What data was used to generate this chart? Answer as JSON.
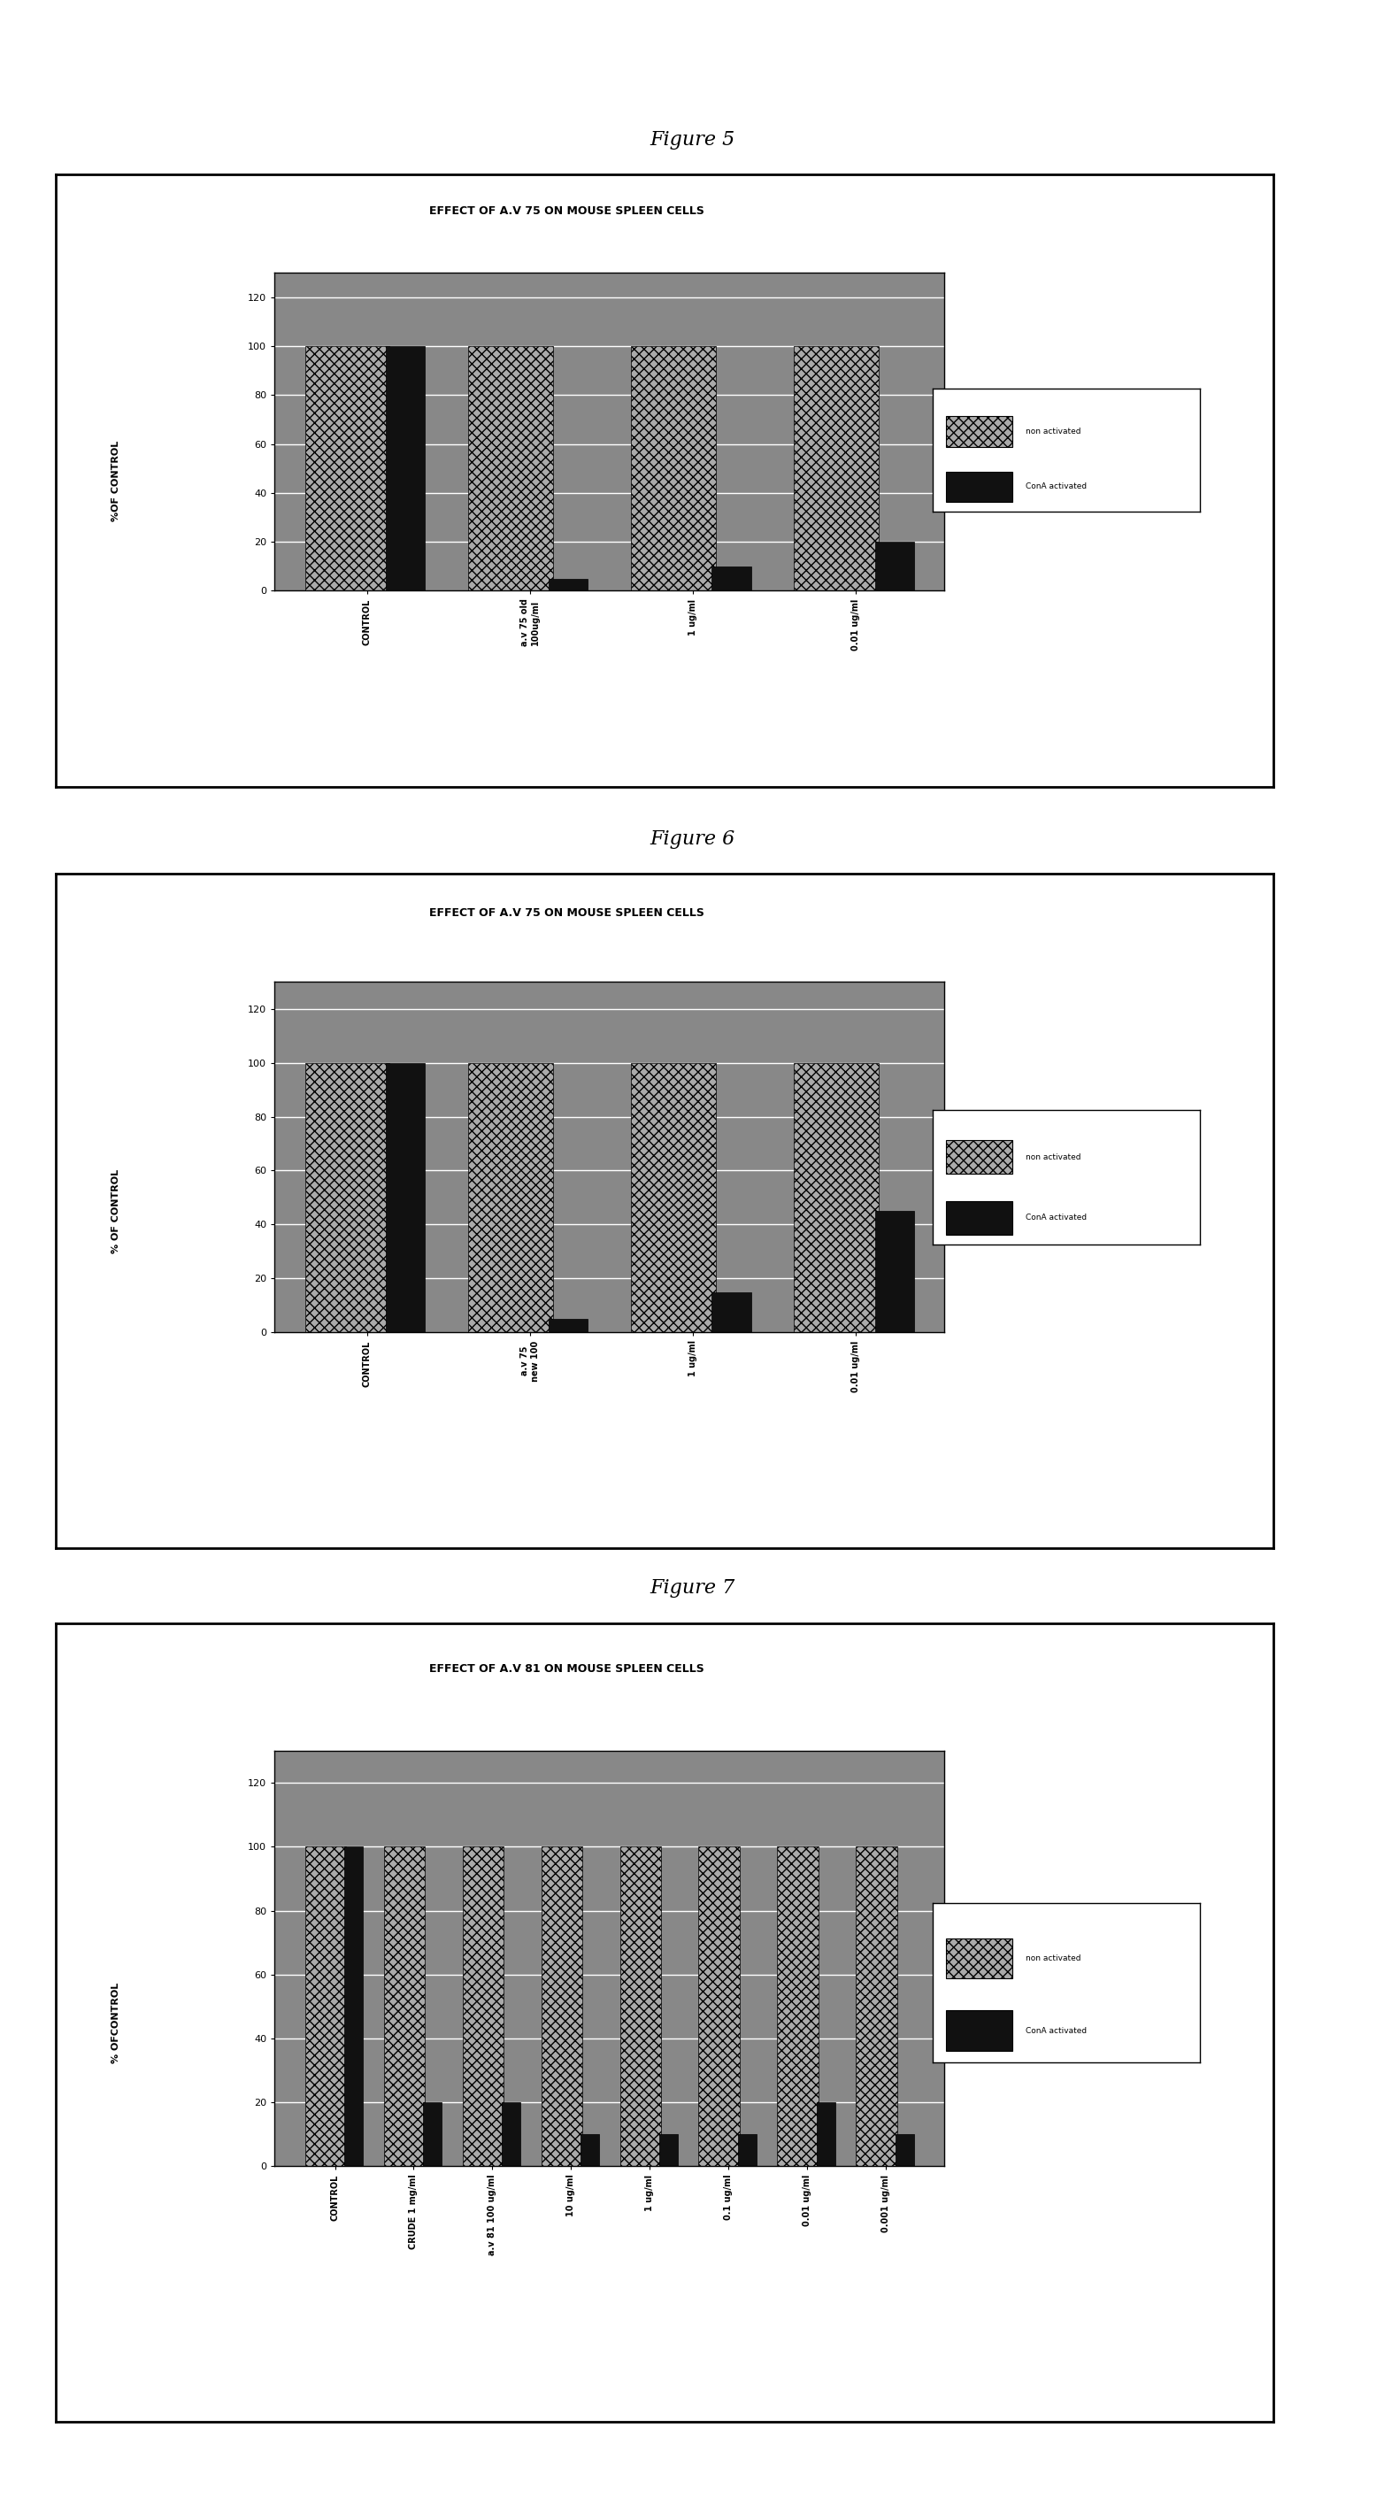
{
  "fig5": {
    "title": "EFFECT OF A.V 75 ON MOUSE SPLEEN CELLS",
    "ylabel": "%OF CONTROL",
    "categories": [
      "CONTROL",
      "a.v 75 old\n100ug/ml",
      "1 ug/ml",
      "0.01 ug/ml"
    ],
    "non_activated": [
      100,
      100,
      100,
      100
    ],
    "con_activated": [
      100,
      5,
      10,
      20
    ],
    "figure_label": "Figure 5"
  },
  "fig6": {
    "title": "EFFECT OF A.V 75 ON MOUSE SPLEEN CELLS",
    "ylabel": "% OF CONTROL",
    "categories": [
      "CONTROL",
      "a.v 75\nnew 100",
      "1 ug/ml",
      "0.01 ug/ml"
    ],
    "non_activated": [
      100,
      100,
      100,
      100
    ],
    "con_activated": [
      100,
      5,
      15,
      45
    ],
    "figure_label": "Figure 6"
  },
  "fig7": {
    "title": "EFFECT OF A.V 81 ON MOUSE SPLEEN CELLS",
    "ylabel": "% OFCONTROL",
    "categories": [
      "CONTROL",
      "CRUDE 1 mg/ml",
      "a.v 81 100 ug/ml",
      "10 ug/ml",
      "1 ug/ml",
      "0.1 ug/ml",
      "0.01 ug/ml",
      "0.001 ug/ml"
    ],
    "non_activated": [
      100,
      100,
      100,
      100,
      100,
      100,
      100,
      100
    ],
    "con_activated": [
      100,
      20,
      20,
      10,
      10,
      10,
      20,
      10
    ],
    "figure_label": "Figure 7"
  },
  "non_activated_color": "#aaaaaa",
  "con_activated_color": "#111111",
  "non_activated_hatch": "xxx",
  "background_color": "#ffffff",
  "chart_bg": "#888888"
}
